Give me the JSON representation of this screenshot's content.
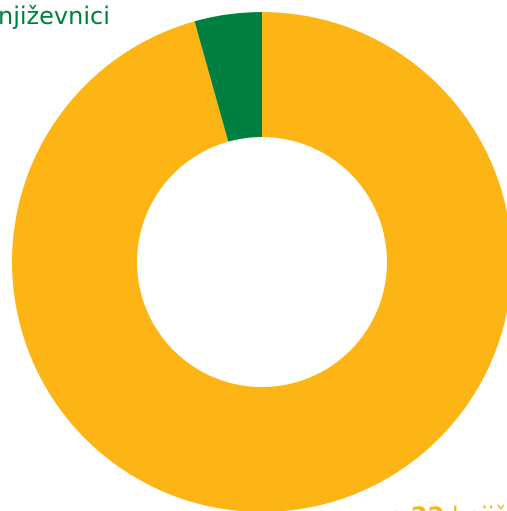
{
  "chart_data": {
    "type": "donut",
    "categories": [
      "njiževnici",
      "knjiž"
    ],
    "values": [
      1,
      22
    ],
    "colors": [
      "#008040",
      "#fdb515"
    ],
    "annotations": {
      "top": "njiževnici",
      "bottom_prefix": "e",
      "bottom_suffix": "knjiž"
    }
  }
}
